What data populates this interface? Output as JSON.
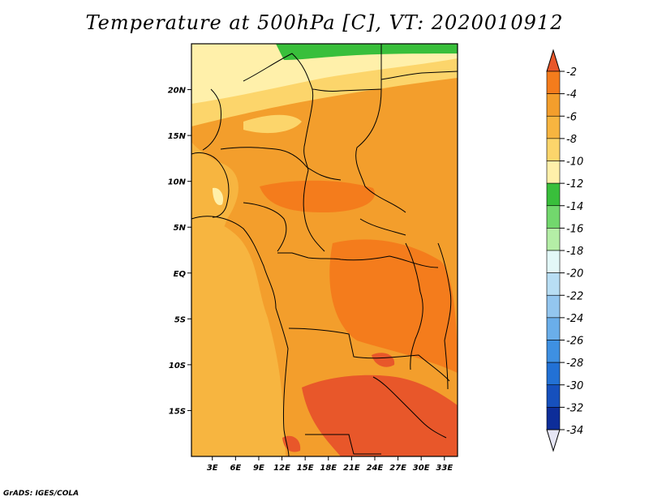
{
  "title": "Temperature at 500hPa [C], VT: 2020010912",
  "credit": "GrADS: IGES/COLA",
  "lat_axis": {
    "ticks": [
      "20N",
      "15N",
      "10N",
      "5N",
      "EQ",
      "5S",
      "10S",
      "15S"
    ],
    "values": [
      20,
      15,
      10,
      5,
      0,
      -5,
      -10,
      -15
    ],
    "range": [
      -20,
      25
    ]
  },
  "lon_axis": {
    "ticks": [
      "3E",
      "6E",
      "9E",
      "12E",
      "15E",
      "18E",
      "21E",
      "24E",
      "27E",
      "30E",
      "33E"
    ],
    "values": [
      3,
      6,
      9,
      12,
      15,
      18,
      21,
      24,
      27,
      30,
      33
    ],
    "range": [
      0.3,
      34.7
    ]
  },
  "colorbar": {
    "labels": [
      "-2",
      "-4",
      "-6",
      "-8",
      "-10",
      "-12",
      "-14",
      "-16",
      "-18",
      "-20",
      "-22",
      "-24",
      "-26",
      "-28",
      "-30",
      "-32",
      "-34"
    ],
    "colors": [
      "#e8572a",
      "#f47c1c",
      "#f39e2c",
      "#f7b540",
      "#fcd56b",
      "#fff0aa",
      "#39bf3b",
      "#72d86d",
      "#b4eea6",
      "#e3f8f8",
      "#b8def4",
      "#93c6ef",
      "#6aaeea",
      "#3e90e2",
      "#2271d5",
      "#1650bd",
      "#0d2d99",
      "#0b1a6e"
    ]
  },
  "map_colors": {
    "ocean": "#f7b540",
    "green_band": "#39bf3b",
    "pale": "#fff0aa",
    "yellow": "#fcd56b",
    "orange": "#f39e2c",
    "dark_orange": "#f47c1c",
    "red_orange": "#e8572a",
    "border": "#000000"
  }
}
